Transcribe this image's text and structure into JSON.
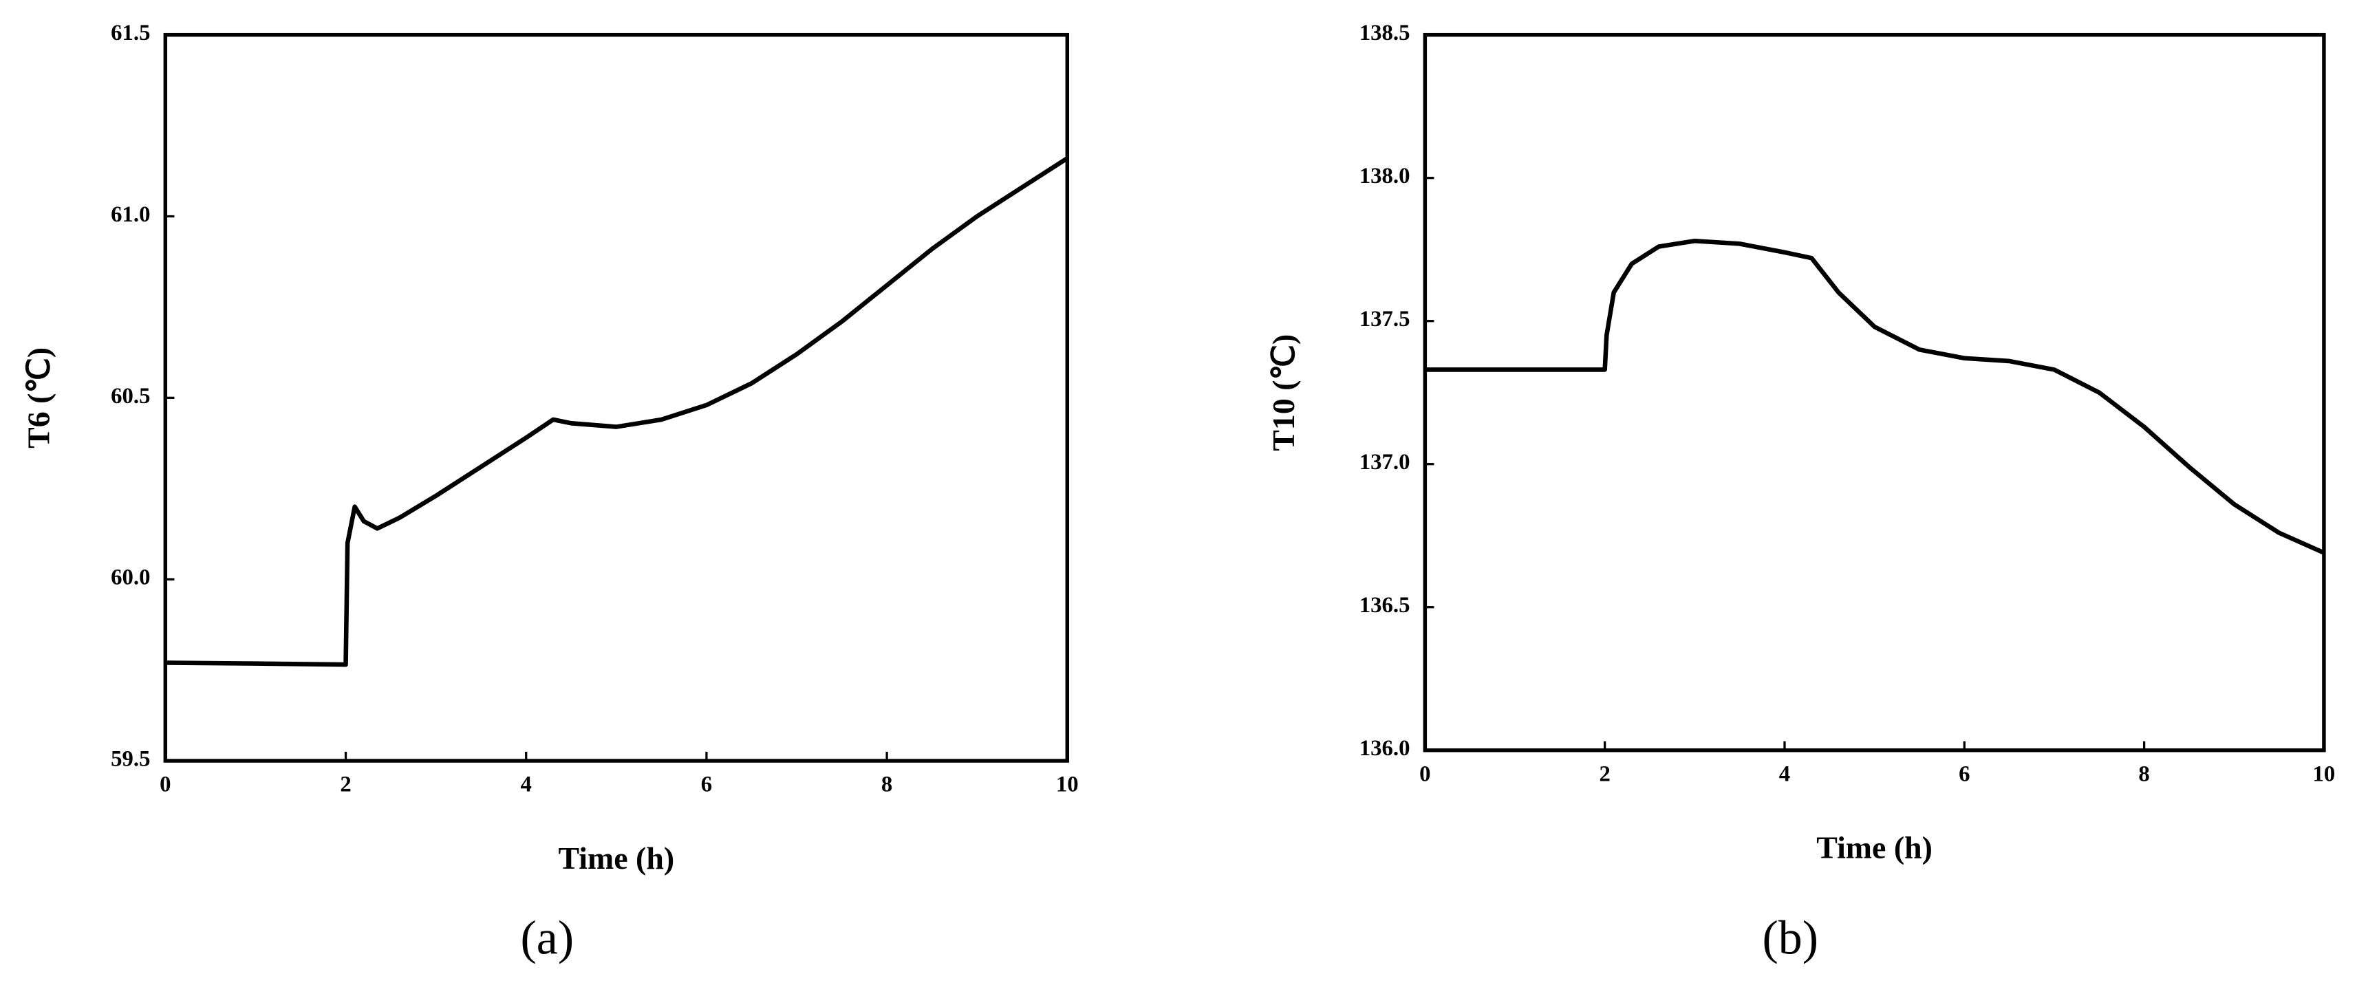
{
  "chart_data": [
    {
      "type": "line",
      "caption": "(a)",
      "x_label": "Time (h)",
      "y_label": "T6 (℃)",
      "color": "#000000",
      "xlim": [
        0,
        10
      ],
      "xticks": [
        0,
        2,
        4,
        6,
        8,
        10
      ],
      "ylim": [
        59.5,
        61.5
      ],
      "yticks": [
        59.5,
        {
          "value": 60,
          "label": "60.0"
        },
        60.5,
        {
          "value": 61,
          "label": "61.0"
        },
        61.5
      ],
      "x": [
        0,
        1,
        2,
        2.02,
        2.1,
        2.2,
        2.35,
        2.6,
        3,
        3.5,
        4,
        4.3,
        4.5,
        5,
        5.5,
        6,
        6.5,
        7,
        7.5,
        8,
        8.5,
        9,
        9.5,
        10
      ],
      "values": [
        59.77,
        59.768,
        59.765,
        60.1,
        60.2,
        60.16,
        60.14,
        60.17,
        60.23,
        60.31,
        60.39,
        60.44,
        60.43,
        60.42,
        60.44,
        60.48,
        60.54,
        60.62,
        60.71,
        60.81,
        60.91,
        61.0,
        61.08,
        61.16
      ]
    },
    {
      "type": "line",
      "caption": "(b)",
      "x_label": "Time (h)",
      "y_label": "T10 (℃)",
      "color": "#000000",
      "xlim": [
        0,
        10
      ],
      "xticks": [
        0,
        2,
        4,
        6,
        8,
        10
      ],
      "ylim": [
        136,
        138.5
      ],
      "yticks": [
        {
          "value": 136,
          "label": "136.0"
        },
        136.5,
        {
          "value": 137,
          "label": "137.0"
        },
        137.5,
        {
          "value": 138,
          "label": "138.0"
        },
        138.5
      ],
      "x": [
        0,
        2,
        2.02,
        2.1,
        2.3,
        2.6,
        3,
        3.5,
        4,
        4.3,
        4.6,
        5,
        5.5,
        6,
        6.5,
        7,
        7.5,
        8,
        8.5,
        9,
        9.5,
        10
      ],
      "values": [
        137.33,
        137.33,
        137.45,
        137.6,
        137.7,
        137.76,
        137.78,
        137.77,
        137.74,
        137.72,
        137.6,
        137.48,
        137.4,
        137.37,
        137.36,
        137.33,
        137.25,
        137.13,
        136.99,
        136.86,
        136.76,
        136.69
      ]
    }
  ]
}
